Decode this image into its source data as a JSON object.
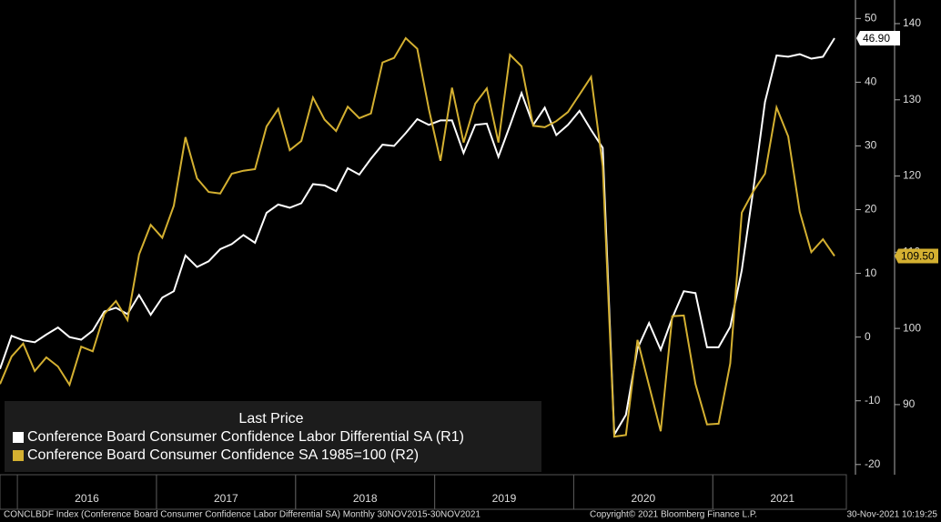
{
  "chart_data": {
    "type": "line",
    "categories": [
      null,
      null,
      null,
      null,
      null,
      null,
      null,
      null,
      "2016",
      null,
      null,
      null,
      null,
      null,
      null,
      null,
      null,
      null,
      null,
      null,
      "2017",
      null,
      null,
      null,
      null,
      null,
      null,
      null,
      null,
      null,
      null,
      null,
      "2018",
      null,
      null,
      null,
      null,
      null,
      null,
      null,
      null,
      null,
      null,
      null,
      "2019",
      null,
      null,
      null,
      null,
      null,
      null,
      null,
      null,
      null,
      null,
      null,
      "2020",
      null,
      null,
      null,
      null,
      null,
      null,
      null,
      null,
      null,
      null,
      null,
      "2021",
      null,
      null,
      null,
      null
    ],
    "series": [
      {
        "name": "Conference Board Consumer Confidence Labor Differential SA  (R1)",
        "color": "#ffffff",
        "axis": "y",
        "values": [
          -5,
          0.2,
          -0.5,
          -0.8,
          0.4,
          1.5,
          0,
          -0.4,
          1,
          4,
          4.6,
          3.6,
          6.6,
          3.5,
          6.2,
          7.2,
          12.8,
          11,
          11.9,
          13.8,
          14.6,
          16,
          14.8,
          19.5,
          20.8,
          20.3,
          21,
          24,
          23.8,
          22.9,
          26.5,
          25.5,
          28,
          30.2,
          30,
          32,
          34.2,
          33.3,
          34,
          34,
          28.9,
          33.3,
          33.5,
          28.3,
          33.2,
          38.3,
          33.3,
          36,
          31.7,
          33.3,
          35.5,
          32.5,
          29.7,
          -15.3,
          -12.2,
          -1.8,
          2.2,
          -2,
          3,
          7.2,
          6.9,
          -1.6,
          -1.6,
          1.6,
          10.5,
          23.2,
          36.9,
          44.2,
          44,
          44.4,
          43.7,
          44,
          46.9
        ],
        "value_labels": [
          null,
          null,
          null,
          null,
          null,
          null,
          null,
          null,
          null,
          null,
          null,
          null,
          null,
          null,
          null,
          null,
          null,
          null,
          null,
          null,
          null,
          null,
          null,
          null,
          null,
          null,
          null,
          null,
          null,
          null,
          null,
          null,
          null,
          null,
          null,
          null,
          null,
          null,
          null,
          null,
          null,
          null,
          null,
          null,
          null,
          null,
          null,
          null,
          null,
          null,
          null,
          null,
          null,
          null,
          null,
          null,
          null,
          null,
          null,
          null,
          null,
          null,
          null,
          null,
          null,
          null,
          null,
          null,
          null,
          null,
          null,
          null,
          "46.90"
        ]
      },
      {
        "name": "Conference Board Consumer Confidence SA 1985=100  (R2)",
        "color": "#d4b031",
        "axis": "y2",
        "values": [
          92.7,
          96.3,
          98,
          94.4,
          96.2,
          95,
          92.6,
          97.6,
          97,
          101.9,
          103.6,
          101.1,
          109.7,
          113.6,
          111.9,
          116.1,
          125.1,
          119.7,
          117.9,
          117.7,
          120.3,
          120.7,
          120.9,
          126.5,
          128.8,
          123.4,
          124.6,
          130.3,
          127.4,
          125.9,
          129.1,
          127.6,
          128.2,
          134.9,
          135.5,
          138.1,
          136.7,
          128.8,
          122,
          131.6,
          124.4,
          129.5,
          131.5,
          124.4,
          135.9,
          134.4,
          126.6,
          126.4,
          127.2,
          128.4,
          130.7,
          133,
          121.3,
          85.8,
          86,
          98.5,
          92.5,
          86.5,
          101.6,
          101.7,
          92.7,
          87.4,
          87.5,
          95.4,
          115.2,
          118,
          120.3,
          129,
          125.2,
          115.3,
          110,
          111.7,
          109.5
        ],
        "value_labels": [
          null,
          null,
          null,
          null,
          null,
          null,
          null,
          null,
          null,
          null,
          null,
          null,
          null,
          null,
          null,
          null,
          null,
          null,
          null,
          null,
          null,
          null,
          null,
          null,
          null,
          null,
          null,
          null,
          null,
          null,
          null,
          null,
          null,
          null,
          null,
          null,
          null,
          null,
          null,
          null,
          null,
          null,
          null,
          null,
          null,
          null,
          null,
          null,
          null,
          null,
          null,
          null,
          null,
          null,
          null,
          null,
          null,
          null,
          null,
          null,
          null,
          null,
          null,
          null,
          null,
          null,
          null,
          null,
          null,
          null,
          null,
          null,
          "109.50"
        ]
      }
    ],
    "ylim": [
      -21.6,
      52.9
    ],
    "yticks": [
      -20,
      -10,
      0,
      10,
      20,
      30,
      40,
      50
    ],
    "y2lim": [
      80.8,
      143.1
    ],
    "y2ticks": [
      90,
      100,
      110,
      120,
      130,
      140
    ],
    "legend_title": "Last Price",
    "footer": [
      "CONCLBDF Index (Conference Board Consumer Confidence Labor Differential SA)  Monthly 30NOV2015-30NOV2021",
      "Copyright© 2021 Bloomberg Finance L.P.",
      "30-Nov-2021 10:19:25"
    ]
  }
}
